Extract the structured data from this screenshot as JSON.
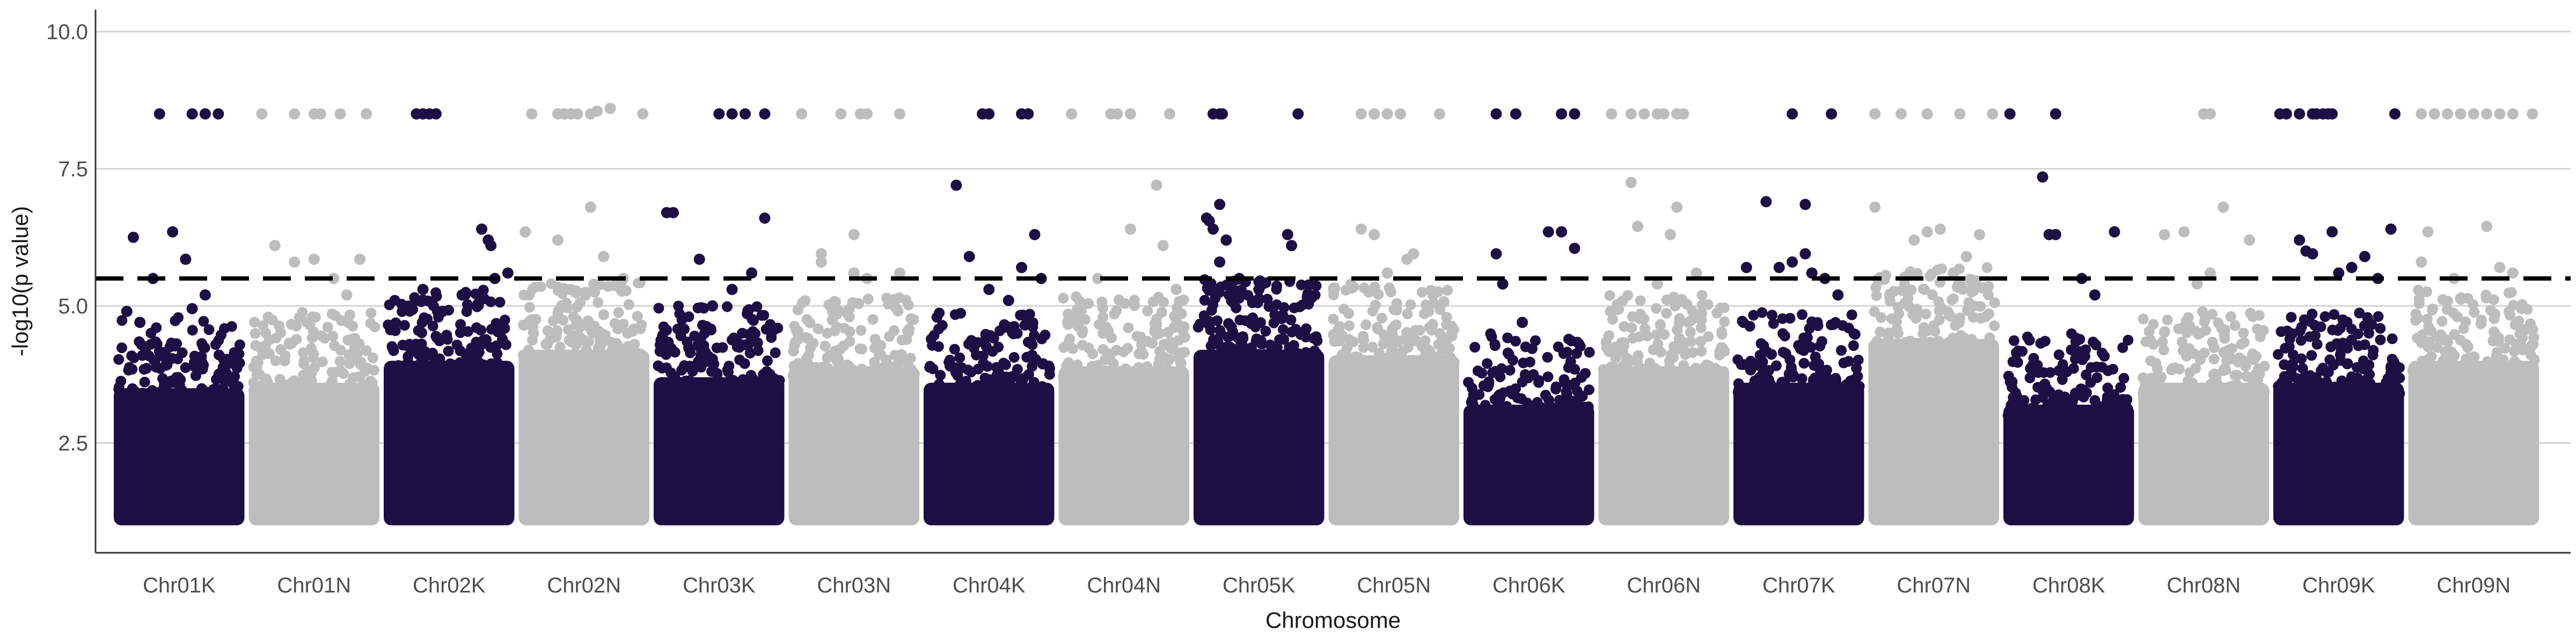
{
  "chart_data": {
    "type": "scatter",
    "subtype": "manhattan",
    "title": "",
    "xlabel": "Chromosome",
    "ylabel": "-log10(p value)",
    "ylim": [
      0.5,
      10.4
    ],
    "yticks": [
      2.5,
      5.0,
      7.5,
      10.0
    ],
    "ytick_labels": [
      "2.5",
      "5.0",
      "7.5",
      "10.0"
    ],
    "grid": "horizontal-major",
    "threshold": 5.5,
    "threshold_style": "dashed",
    "colors": {
      "dark": "#1c0f44",
      "light": "#bdbdbd",
      "threshold": "#000000",
      "grid": "#d4d4d4",
      "axis": "#333333"
    },
    "chromosomes": [
      {
        "name": "Chr01K",
        "color": "dark",
        "density_top": 3.9,
        "peaks": [
          [
            0.15,
            6.25
          ],
          [
            0.45,
            6.35
          ],
          [
            0.55,
            5.85
          ],
          [
            0.3,
            5.5
          ],
          [
            0.7,
            5.2
          ],
          [
            0.6,
            4.95
          ],
          [
            0.1,
            4.9
          ],
          [
            0.2,
            4.7
          ],
          [
            0.35,
            8.5
          ],
          [
            0.6,
            8.5
          ],
          [
            0.7,
            8.5
          ],
          [
            0.8,
            8.5
          ]
        ]
      },
      {
        "name": "Chr01N",
        "color": "light",
        "density_top": 4.0,
        "peaks": [
          [
            0.2,
            6.1
          ],
          [
            0.35,
            5.8
          ],
          [
            0.5,
            5.85
          ],
          [
            0.65,
            5.5
          ],
          [
            0.85,
            5.85
          ],
          [
            0.75,
            5.2
          ],
          [
            0.1,
            8.5
          ],
          [
            0.35,
            8.5
          ],
          [
            0.5,
            8.5
          ],
          [
            0.55,
            8.5
          ],
          [
            0.7,
            8.5
          ],
          [
            0.9,
            8.5
          ]
        ]
      },
      {
        "name": "Chr02K",
        "color": "dark",
        "density_top": 4.4,
        "peaks": [
          [
            0.95,
            5.6
          ],
          [
            0.75,
            6.4
          ],
          [
            0.8,
            6.2
          ],
          [
            0.82,
            6.1
          ],
          [
            0.85,
            5.5
          ],
          [
            0.6,
            5.2
          ],
          [
            0.3,
            5.3
          ],
          [
            0.45,
            4.9
          ],
          [
            0.25,
            8.5
          ],
          [
            0.3,
            8.5
          ],
          [
            0.35,
            8.5
          ],
          [
            0.4,
            8.5
          ]
        ]
      },
      {
        "name": "Chr02N",
        "color": "light",
        "density_top": 4.6,
        "peaks": [
          [
            0.05,
            6.35
          ],
          [
            0.3,
            6.2
          ],
          [
            0.55,
            6.8
          ],
          [
            0.65,
            5.9
          ],
          [
            0.8,
            5.5
          ],
          [
            0.4,
            5.3
          ],
          [
            0.1,
            8.5
          ],
          [
            0.3,
            8.5
          ],
          [
            0.35,
            8.5
          ],
          [
            0.4,
            8.5
          ],
          [
            0.45,
            8.5
          ],
          [
            0.55,
            8.5
          ],
          [
            0.6,
            8.55
          ],
          [
            0.7,
            8.6
          ],
          [
            0.95,
            8.5
          ]
        ]
      },
      {
        "name": "Chr03K",
        "color": "dark",
        "density_top": 4.1,
        "peaks": [
          [
            0.1,
            6.7
          ],
          [
            0.15,
            6.7
          ],
          [
            0.35,
            5.85
          ],
          [
            0.75,
            5.6
          ],
          [
            0.85,
            6.6
          ],
          [
            0.6,
            5.3
          ],
          [
            0.45,
            5.0
          ],
          [
            0.5,
            8.5
          ],
          [
            0.6,
            8.5
          ],
          [
            0.7,
            8.5
          ],
          [
            0.85,
            8.5
          ]
        ]
      },
      {
        "name": "Chr03N",
        "color": "light",
        "density_top": 4.3,
        "peaks": [
          [
            0.25,
            5.8
          ],
          [
            0.25,
            5.95
          ],
          [
            0.5,
            5.6
          ],
          [
            0.5,
            6.3
          ],
          [
            0.6,
            5.5
          ],
          [
            0.85,
            5.6
          ],
          [
            0.1,
            8.5
          ],
          [
            0.4,
            8.5
          ],
          [
            0.55,
            8.5
          ],
          [
            0.6,
            8.5
          ],
          [
            0.85,
            8.5
          ]
        ]
      },
      {
        "name": "Chr04K",
        "color": "dark",
        "density_top": 4.0,
        "peaks": [
          [
            0.25,
            7.2
          ],
          [
            0.35,
            5.9
          ],
          [
            0.5,
            5.3
          ],
          [
            0.75,
            5.7
          ],
          [
            0.85,
            6.3
          ],
          [
            0.9,
            5.5
          ],
          [
            0.65,
            5.1
          ],
          [
            0.45,
            8.5
          ],
          [
            0.5,
            8.5
          ],
          [
            0.75,
            8.5
          ],
          [
            0.8,
            8.5
          ]
        ]
      },
      {
        "name": "Chr04N",
        "color": "light",
        "density_top": 4.3,
        "peaks": [
          [
            0.55,
            6.4
          ],
          [
            0.75,
            7.2
          ],
          [
            0.8,
            6.1
          ],
          [
            0.3,
            5.5
          ],
          [
            0.9,
            5.3
          ],
          [
            0.1,
            8.5
          ],
          [
            0.4,
            8.5
          ],
          [
            0.45,
            8.5
          ],
          [
            0.55,
            8.5
          ],
          [
            0.85,
            8.5
          ]
        ]
      },
      {
        "name": "Chr05K",
        "color": "dark",
        "density_top": 4.6,
        "peaks": [
          [
            0.1,
            6.6
          ],
          [
            0.12,
            6.55
          ],
          [
            0.15,
            6.4
          ],
          [
            0.2,
            6.85
          ],
          [
            0.25,
            6.2
          ],
          [
            0.72,
            6.3
          ],
          [
            0.75,
            6.1
          ],
          [
            0.2,
            5.8
          ],
          [
            0.35,
            5.5
          ],
          [
            0.5,
            5.3
          ],
          [
            0.15,
            8.5
          ],
          [
            0.2,
            8.5
          ],
          [
            0.22,
            8.5
          ],
          [
            0.8,
            8.5
          ]
        ]
      },
      {
        "name": "Chr05N",
        "color": "light",
        "density_top": 4.5,
        "peaks": [
          [
            0.25,
            6.4
          ],
          [
            0.35,
            6.3
          ],
          [
            0.6,
            5.85
          ],
          [
            0.65,
            5.95
          ],
          [
            0.45,
            5.6
          ],
          [
            0.8,
            5.2
          ],
          [
            0.25,
            8.5
          ],
          [
            0.35,
            8.5
          ],
          [
            0.45,
            8.5
          ],
          [
            0.55,
            8.5
          ],
          [
            0.85,
            8.5
          ]
        ]
      },
      {
        "name": "Chr06K",
        "color": "dark",
        "density_top": 3.6,
        "peaks": [
          [
            0.25,
            5.95
          ],
          [
            0.65,
            6.35
          ],
          [
            0.75,
            6.35
          ],
          [
            0.85,
            6.05
          ],
          [
            0.3,
            5.4
          ],
          [
            0.45,
            4.7
          ],
          [
            0.25,
            8.5
          ],
          [
            0.4,
            8.5
          ],
          [
            0.75,
            8.5
          ],
          [
            0.85,
            8.5
          ]
        ]
      },
      {
        "name": "Chr06N",
        "color": "light",
        "density_top": 4.3,
        "peaks": [
          [
            0.25,
            7.25
          ],
          [
            0.3,
            6.45
          ],
          [
            0.55,
            6.3
          ],
          [
            0.6,
            6.8
          ],
          [
            0.75,
            5.6
          ],
          [
            0.45,
            5.4
          ],
          [
            0.1,
            8.5
          ],
          [
            0.25,
            8.5
          ],
          [
            0.35,
            8.5
          ],
          [
            0.45,
            8.5
          ],
          [
            0.5,
            8.5
          ],
          [
            0.6,
            8.5
          ],
          [
            0.65,
            8.5
          ]
        ]
      },
      {
        "name": "Chr07K",
        "color": "dark",
        "density_top": 4.0,
        "peaks": [
          [
            0.1,
            5.7
          ],
          [
            0.25,
            6.9
          ],
          [
            0.35,
            5.7
          ],
          [
            0.45,
            5.8
          ],
          [
            0.55,
            5.95
          ],
          [
            0.55,
            6.85
          ],
          [
            0.6,
            5.6
          ],
          [
            0.7,
            5.5
          ],
          [
            0.8,
            5.2
          ],
          [
            0.45,
            8.5
          ],
          [
            0.75,
            8.5
          ]
        ]
      },
      {
        "name": "Chr07N",
        "color": "light",
        "density_top": 4.8,
        "peaks": [
          [
            0.05,
            6.8
          ],
          [
            0.35,
            6.2
          ],
          [
            0.45,
            6.35
          ],
          [
            0.55,
            6.4
          ],
          [
            0.75,
            5.9
          ],
          [
            0.85,
            6.3
          ],
          [
            0.65,
            5.6
          ],
          [
            0.05,
            8.5
          ],
          [
            0.25,
            8.5
          ],
          [
            0.45,
            8.5
          ],
          [
            0.7,
            8.5
          ],
          [
            0.95,
            8.5
          ]
        ]
      },
      {
        "name": "Chr08K",
        "color": "dark",
        "density_top": 3.6,
        "peaks": [
          [
            0.3,
            7.35
          ],
          [
            0.35,
            6.3
          ],
          [
            0.4,
            6.3
          ],
          [
            0.85,
            6.35
          ],
          [
            0.6,
            5.5
          ],
          [
            0.7,
            5.2
          ],
          [
            0.05,
            8.5
          ],
          [
            0.4,
            8.5
          ]
        ]
      },
      {
        "name": "Chr08N",
        "color": "light",
        "density_top": 4.0,
        "peaks": [
          [
            0.2,
            6.3
          ],
          [
            0.35,
            6.35
          ],
          [
            0.55,
            5.6
          ],
          [
            0.65,
            6.8
          ],
          [
            0.85,
            6.2
          ],
          [
            0.45,
            5.4
          ],
          [
            0.5,
            8.5
          ],
          [
            0.55,
            8.5
          ]
        ]
      },
      {
        "name": "Chr09K",
        "color": "dark",
        "density_top": 4.0,
        "peaks": [
          [
            0.2,
            6.2
          ],
          [
            0.25,
            6.0
          ],
          [
            0.3,
            5.95
          ],
          [
            0.45,
            6.35
          ],
          [
            0.6,
            5.7
          ],
          [
            0.7,
            5.9
          ],
          [
            0.8,
            5.5
          ],
          [
            0.9,
            6.4
          ],
          [
            0.5,
            5.6
          ],
          [
            0.05,
            8.5
          ],
          [
            0.1,
            8.5
          ],
          [
            0.2,
            8.5
          ],
          [
            0.3,
            8.5
          ],
          [
            0.33,
            8.5
          ],
          [
            0.38,
            8.5
          ],
          [
            0.42,
            8.5
          ],
          [
            0.45,
            8.5
          ],
          [
            0.93,
            8.5
          ]
        ]
      },
      {
        "name": "Chr09N",
        "color": "light",
        "density_top": 4.4,
        "peaks": [
          [
            0.1,
            5.8
          ],
          [
            0.15,
            6.35
          ],
          [
            0.35,
            5.5
          ],
          [
            0.6,
            6.45
          ],
          [
            0.7,
            5.7
          ],
          [
            0.8,
            5.6
          ],
          [
            0.1,
            8.5
          ],
          [
            0.2,
            8.5
          ],
          [
            0.3,
            8.5
          ],
          [
            0.4,
            8.5
          ],
          [
            0.5,
            8.5
          ],
          [
            0.6,
            8.5
          ],
          [
            0.7,
            8.5
          ],
          [
            0.8,
            8.5
          ],
          [
            0.95,
            8.5
          ]
        ]
      }
    ]
  }
}
